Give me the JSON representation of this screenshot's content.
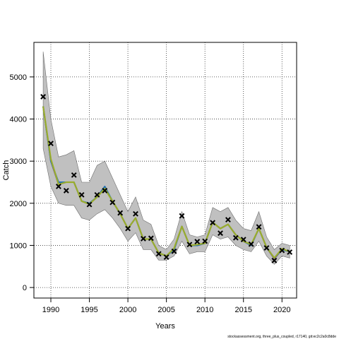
{
  "chart_data": {
    "type": "line",
    "xlabel": "Years",
    "ylabel": "Catch",
    "xlim": [
      1987.8,
      2021.9
    ],
    "ylim": [
      -250,
      5820
    ],
    "x_ticks": [
      1990,
      1995,
      2000,
      2005,
      2010,
      2015,
      2020
    ],
    "y_ticks": [
      0,
      1000,
      2000,
      3000,
      4000,
      5000
    ],
    "grid": true,
    "footnote": "stockassessment.org, three_plus_coupled, r17140, git:ec2c2a0c8dde",
    "colors": {
      "band": "#c0c0c0",
      "band_edge": "#6e6e6e",
      "estimate_main": "#9aad2c",
      "estimate_secondary": "#1f6fb6",
      "estimate_tertiary": "#6b3fa0",
      "observed_marker": "#000000"
    },
    "years": [
      1989,
      1990,
      1991,
      1992,
      1993,
      1994,
      1995,
      1996,
      1997,
      1998,
      1999,
      2000,
      2001,
      2002,
      2003,
      2004,
      2005,
      2006,
      2007,
      2008,
      2009,
      2010,
      2011,
      2012,
      2013,
      2014,
      2015,
      2016,
      2017,
      2018,
      2019,
      2020,
      2021
    ],
    "series": [
      {
        "name": "",
        "role": "estimate_main",
        "values": [
          4300,
          3050,
          2450,
          2500,
          2500,
          2050,
          1980,
          2150,
          2350,
          2050,
          1750,
          1400,
          1650,
          1150,
          1150,
          820,
          750,
          930,
          1450,
          1000,
          1020,
          1050,
          1550,
          1400,
          1500,
          1250,
          1100,
          1020,
          1400,
          950,
          700,
          920,
          850
        ]
      },
      {
        "name": "",
        "role": "estimate_secondary",
        "values": [
          4300,
          3000,
          2500,
          2500,
          2500,
          2050,
          2000,
          2150,
          2400,
          2050,
          1750,
          1400,
          1650,
          1150,
          1150,
          820,
          750,
          900,
          1450,
          1000,
          1000,
          1050,
          1550,
          1400,
          1500,
          1250,
          1100,
          1000,
          1400,
          950,
          700,
          900,
          850
        ]
      },
      {
        "name": "",
        "role": "estimate_tertiary",
        "values": [
          4300,
          3000,
          2450,
          2500,
          2500,
          2050,
          1980,
          2150,
          2350,
          2050,
          1750,
          1400,
          1650,
          1150,
          1150,
          820,
          750,
          900,
          1450,
          1000,
          1000,
          1050,
          1550,
          1400,
          1500,
          1250,
          1100,
          1000,
          1400,
          950,
          680,
          900,
          850
        ]
      }
    ],
    "confidence_band": {
      "upper": [
        5600,
        4000,
        3100,
        3150,
        3250,
        2500,
        2500,
        2900,
        3000,
        2600,
        2200,
        1800,
        2150,
        1600,
        1500,
        1000,
        900,
        1150,
        1800,
        1250,
        1200,
        1250,
        1900,
        1800,
        1900,
        1600,
        1400,
        1350,
        1800,
        1200,
        900,
        1050,
        1000
      ],
      "lower": [
        3300,
        2400,
        2000,
        1950,
        1950,
        1650,
        1600,
        1750,
        1850,
        1650,
        1400,
        1100,
        1300,
        900,
        900,
        650,
        650,
        750,
        1100,
        800,
        850,
        850,
        1250,
        1150,
        1200,
        1000,
        900,
        850,
        1100,
        750,
        550,
        750,
        700
      ]
    },
    "observed": {
      "label": "×",
      "values": [
        4530,
        3420,
        2400,
        2300,
        2670,
        2200,
        1970,
        2200,
        2300,
        2020,
        1770,
        1400,
        1750,
        1160,
        1170,
        800,
        720,
        860,
        1700,
        1020,
        1090,
        1100,
        1540,
        1290,
        1610,
        1180,
        1140,
        1030,
        1440,
        940,
        640,
        880,
        840
      ]
    }
  }
}
